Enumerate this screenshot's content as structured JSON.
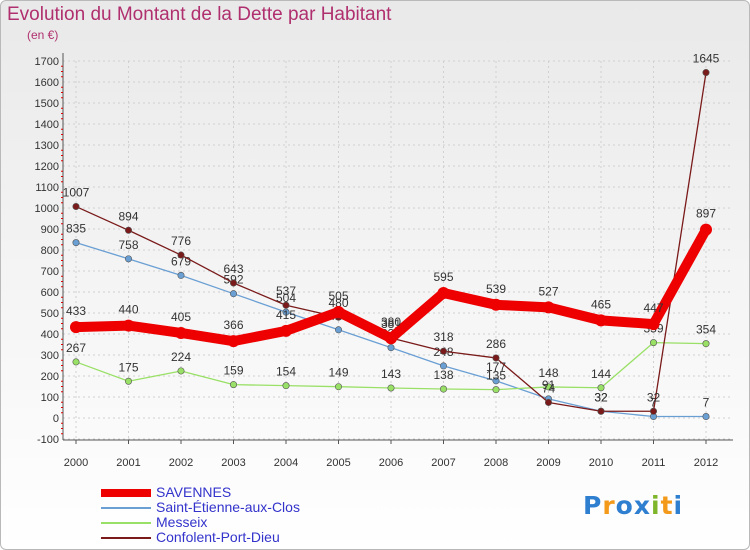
{
  "chart_data": {
    "type": "line",
    "title": "Evolution du Montant de la Dette par Habitant",
    "subtitle": "(en €)",
    "xlabel": "",
    "ylabel": "",
    "ylim": [
      -100,
      1700
    ],
    "y_ticks": [
      -100,
      0,
      100,
      200,
      300,
      400,
      500,
      600,
      700,
      800,
      900,
      1000,
      1100,
      1200,
      1300,
      1400,
      1500,
      1600,
      1700
    ],
    "categories": [
      "2000",
      "2001",
      "2002",
      "2003",
      "2004",
      "2005",
      "2006",
      "2007",
      "2008",
      "2009",
      "2010",
      "2011",
      "2012"
    ],
    "grid": true,
    "series": [
      {
        "name": "SAVENNES",
        "color": "#ee0000",
        "values": [
          433,
          440,
          405,
          366,
          415,
          505,
          380,
          595,
          539,
          527,
          465,
          447,
          897
        ]
      },
      {
        "name": "Saint-Étienne-aux-Clos",
        "color": "#6a9fd4",
        "values": [
          835,
          758,
          679,
          592,
          504,
          420,
          335,
          248,
          177,
          91,
          32,
          7,
          7
        ]
      },
      {
        "name": "Messeix",
        "color": "#99e066",
        "values": [
          267,
          175,
          224,
          159,
          154,
          149,
          143,
          138,
          135,
          148,
          144,
          359,
          354
        ]
      },
      {
        "name": "Confolent-Port-Dieu",
        "color": "#7a1a1a",
        "values": [
          1007,
          894,
          776,
          643,
          537,
          480,
          381,
          318,
          286,
          74,
          32,
          32,
          1645
        ]
      }
    ]
  },
  "logo": {
    "letters": [
      "P",
      "r",
      "o",
      "x",
      "i",
      "t",
      "i"
    ],
    "colors": [
      "#2f7fd1",
      "#f49a1b",
      "#2f7fd1",
      "#2f7fd1",
      "#7fb52a",
      "#f49a1b",
      "#2f7fd1"
    ]
  }
}
